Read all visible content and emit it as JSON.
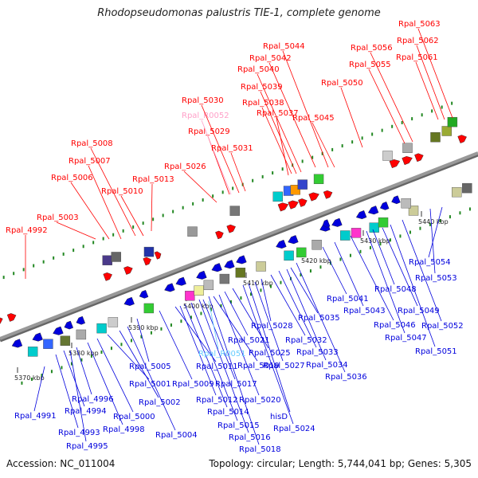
{
  "title": "Rhodopseudomonas palustris TIE-1, complete genome",
  "accession": "Accession: NC_011004",
  "info": "Topology: circular; Length: 5,744,041 bp; Genes: 5,305",
  "colors": {
    "top_strand": "#ff0000",
    "bottom_strand": "#0000dd",
    "rna": "#ffa0c8",
    "highlight": "#66ccff",
    "backbone": "#999999",
    "tick": "#228822"
  },
  "kbp_labels": [
    "5370 kbp",
    "5380 kbp",
    "5390 kbp",
    "5400 kbp",
    "5410 kbp",
    "5420 kbp",
    "5430 kbp",
    "5440 kbp"
  ],
  "top_labels": [
    "Rpal_4992",
    "Rpal_5003",
    "Rpal_5006",
    "Rpal_5007",
    "Rpal_5008",
    "Rpal_5010",
    "Rpal_5013",
    "Rpal_5026",
    "Rpal_5029",
    "Rpal_R0052",
    "Rpal_5030",
    "Rpal_5031",
    "Rpal_5037",
    "Rpal_5038",
    "Rpal_5039",
    "Rpal_5040",
    "Rpal_5042",
    "Rpal_5044",
    "Rpal_5045",
    "Rpal_5050",
    "Rpal_5055",
    "Rpal_5056",
    "Rpal_5061",
    "Rpal_5062",
    "Rpal_5063"
  ],
  "bottom_labels": [
    "Rpal_4991",
    "Rpal_4993",
    "Rpal_4994",
    "Rpal_4995",
    "Rpal_4996",
    "Rpal_4998",
    "Rpal_5000",
    "Rpal_5001",
    "Rpal_5002",
    "Rpal_5004",
    "Rpal_5005",
    "Rpal_5009",
    "Rpal_5011",
    "Rpal_5012",
    "Rpal_5014",
    "Rpal_5015",
    "Rpal_5016",
    "Rpal_5017",
    "Rpal_5018",
    "Rpal_5019",
    "Rpal_5020",
    "Rpal_5021",
    "Rpal_R0051",
    "Rpal_5025",
    "Rpal_5024",
    "hisD",
    "Rpal_5027",
    "Rpal_5028",
    "Rpal_5032",
    "Rpal_5033",
    "Rpal_5034",
    "Rpal_5035",
    "Rpal_5036",
    "Rpal_5041",
    "Rpal_5043",
    "Rpal_5046",
    "Rpal_5047",
    "Rpal_5048",
    "Rpal_5049",
    "Rpal_5051",
    "Rpal_5052",
    "Rpal_5053",
    "Rpal_5054"
  ]
}
